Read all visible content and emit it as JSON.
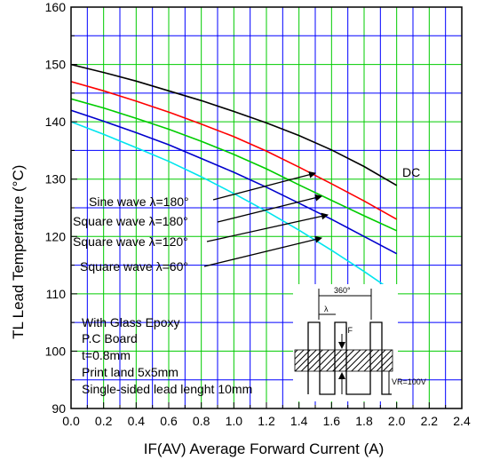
{
  "chart_data": {
    "type": "line",
    "xlabel": "IF(AV)  Average Forward Current    (A)",
    "ylabel": "Lead Temperature    (°C)",
    "ylabel_prefix": "TL",
    "xlim": [
      0.0,
      2.4
    ],
    "ylim": [
      90,
      160
    ],
    "x_ticks": [
      "0.0",
      "0.2",
      "0.4",
      "0.6",
      "0.8",
      "1.0",
      "1.2",
      "1.4",
      "1.6",
      "1.8",
      "2.0",
      "2.2",
      "2.4"
    ],
    "y_ticks": [
      "90",
      "100",
      "110",
      "120",
      "130",
      "140",
      "150",
      "160"
    ],
    "grid": true,
    "series": [
      {
        "name": "DC",
        "color": "#000000",
        "x": [
          0.0,
          0.2,
          0.4,
          0.6,
          0.8,
          1.0,
          1.2,
          1.4,
          1.6,
          1.8,
          2.0
        ],
        "y": [
          150.0,
          148.6,
          147.1,
          145.4,
          143.7,
          141.8,
          139.8,
          137.6,
          135.1,
          132.2,
          128.9
        ]
      },
      {
        "name": "Sine wave λ=180°",
        "color": "#ff0000",
        "x": [
          0.0,
          0.2,
          0.4,
          0.6,
          0.8,
          1.0,
          1.2,
          1.4,
          1.6,
          1.8,
          2.0
        ],
        "y": [
          147.0,
          145.4,
          143.6,
          141.7,
          139.6,
          137.4,
          134.9,
          132.1,
          129.2,
          126.2,
          123.0
        ]
      },
      {
        "name": "Square wave λ=180°",
        "color": "#00cc00",
        "x": [
          0.0,
          0.2,
          0.4,
          0.6,
          0.8,
          1.0,
          1.2,
          1.4,
          1.6,
          1.8,
          2.0
        ],
        "y": [
          144.0,
          142.4,
          140.6,
          138.7,
          136.6,
          134.3,
          131.8,
          129.0,
          126.3,
          123.6,
          121.0
        ]
      },
      {
        "name": "Square wave λ=120°",
        "color": "#0000cc",
        "x": [
          0.0,
          0.2,
          0.4,
          0.6,
          0.8,
          1.0,
          1.2,
          1.4,
          1.6,
          1.8,
          2.0
        ],
        "y": [
          142.0,
          140.1,
          138.1,
          136.0,
          133.6,
          131.2,
          128.6,
          125.8,
          123.0,
          120.0,
          117.0
        ]
      },
      {
        "name": "Square wave λ=60°",
        "color": "#00e5ee",
        "x": [
          0.0,
          0.2,
          0.4,
          0.6,
          0.8,
          1.0,
          1.2,
          1.4,
          1.6,
          1.8,
          2.0
        ],
        "y": [
          140.0,
          137.8,
          135.5,
          133.1,
          130.4,
          127.5,
          124.4,
          121.1,
          117.6,
          113.9,
          110.0
        ]
      }
    ],
    "annotations": {
      "dc": "DC",
      "sine_180": "Sine wave λ=180°",
      "square_180": "Square wave λ=180°",
      "square_120": "Square wave λ=120°",
      "square_60": "Square wave λ=60°",
      "note_1": "With Glass Epoxy",
      "note_2": "P.C Board",
      "note_3": "t=0.8mm",
      "note_4": "Print land 5x5mm",
      "note_5": "Single-sided lead lenght 10mm",
      "inset_360": "360°",
      "inset_lambda": "λ",
      "inset_if": "IF",
      "inset_vr": "VR=100V"
    },
    "colors": {
      "grid_major": "#00cc00",
      "grid_minor": "#0000ff",
      "axis": "#000000"
    }
  }
}
